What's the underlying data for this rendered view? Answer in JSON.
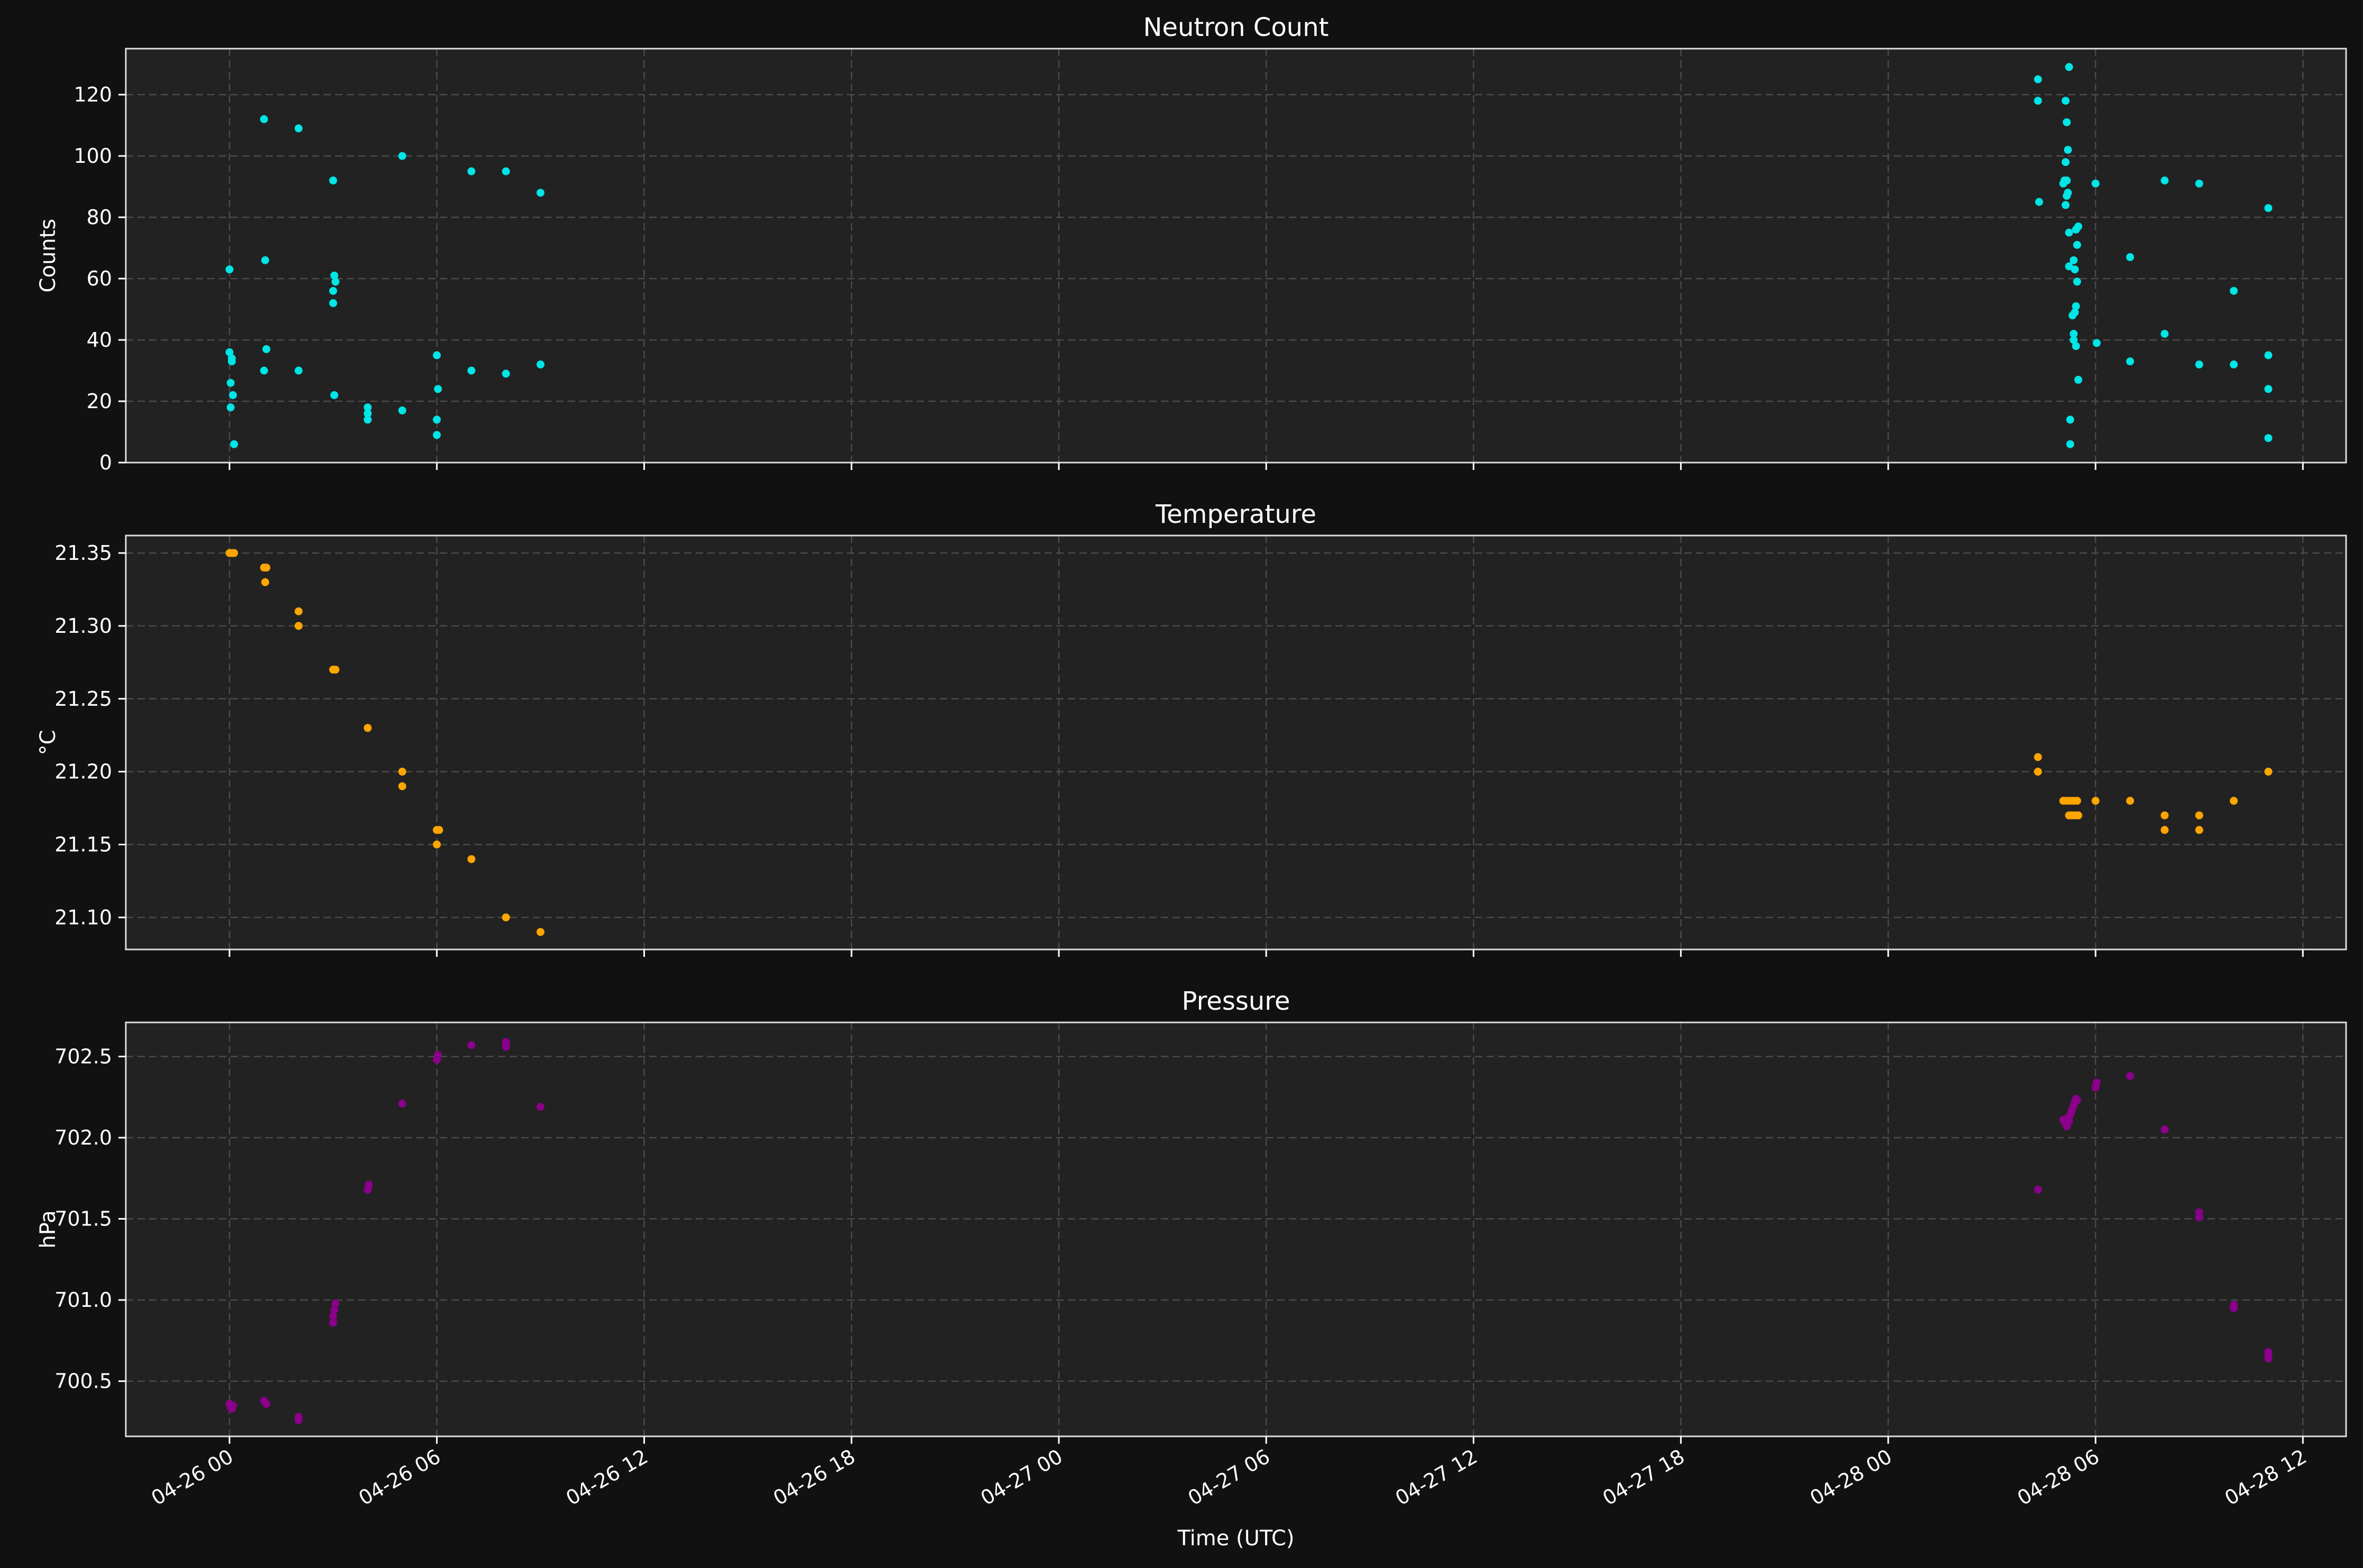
{
  "chart_data": [
    {
      "type": "scatter",
      "title": "Neutron Count",
      "ylabel": "Counts",
      "ylim": [
        0,
        135
      ],
      "yticks": [
        0,
        20,
        40,
        60,
        80,
        100,
        120
      ],
      "ytick_labels": [
        "0",
        "20",
        "40",
        "60",
        "80",
        "100",
        "120"
      ],
      "color": "#00e5e5",
      "points": [
        [
          "04-26 00:00",
          63
        ],
        [
          "04-26 00:00",
          36
        ],
        [
          "04-26 00:04",
          34
        ],
        [
          "04-26 00:04",
          33
        ],
        [
          "04-26 00:02",
          26
        ],
        [
          "04-26 00:06",
          22
        ],
        [
          "04-26 00:02",
          18
        ],
        [
          "04-26 00:08",
          6
        ],
        [
          "04-26 01:00",
          112
        ],
        [
          "04-26 01:02",
          66
        ],
        [
          "04-26 01:04",
          37
        ],
        [
          "04-26 01:00",
          30
        ],
        [
          "04-26 02:00",
          109
        ],
        [
          "04-26 02:00",
          30
        ],
        [
          "04-26 03:00",
          92
        ],
        [
          "04-26 03:02",
          61
        ],
        [
          "04-26 03:04",
          59
        ],
        [
          "04-26 03:00",
          56
        ],
        [
          "04-26 03:00",
          52
        ],
        [
          "04-26 03:02",
          22
        ],
        [
          "04-26 04:00",
          18
        ],
        [
          "04-26 04:00",
          16
        ],
        [
          "04-26 04:00",
          14
        ],
        [
          "04-26 05:00",
          100
        ],
        [
          "04-26 05:00",
          17
        ],
        [
          "04-26 06:00",
          35
        ],
        [
          "04-26 06:02",
          24
        ],
        [
          "04-26 06:00",
          14
        ],
        [
          "04-26 06:00",
          9
        ],
        [
          "04-26 07:00",
          95
        ],
        [
          "04-26 07:00",
          30
        ],
        [
          "04-26 08:00",
          95
        ],
        [
          "04-26 08:00",
          29
        ],
        [
          "04-26 09:00",
          88
        ],
        [
          "04-26 09:00",
          32
        ],
        [
          "04-28 04:20",
          125
        ],
        [
          "04-28 04:20",
          118
        ],
        [
          "04-28 04:22",
          85
        ],
        [
          "04-28 05:14",
          129
        ],
        [
          "04-28 05:08",
          118
        ],
        [
          "04-28 05:10",
          111
        ],
        [
          "04-28 05:12",
          102
        ],
        [
          "04-28 05:08",
          98
        ],
        [
          "04-28 05:06",
          92
        ],
        [
          "04-28 05:10",
          92
        ],
        [
          "04-28 05:04",
          91
        ],
        [
          "04-28 05:12",
          88
        ],
        [
          "04-28 05:10",
          87
        ],
        [
          "04-28 05:08",
          84
        ],
        [
          "04-28 05:30",
          77
        ],
        [
          "04-28 05:26",
          76
        ],
        [
          "04-28 05:14",
          75
        ],
        [
          "04-28 05:28",
          71
        ],
        [
          "04-28 05:22",
          66
        ],
        [
          "04-28 05:14",
          64
        ],
        [
          "04-28 05:24",
          63
        ],
        [
          "04-28 05:28",
          59
        ],
        [
          "04-28 05:26",
          51
        ],
        [
          "04-28 05:24",
          49
        ],
        [
          "04-28 05:20",
          48
        ],
        [
          "04-28 05:22",
          42
        ],
        [
          "04-28 05:22",
          40
        ],
        [
          "04-28 05:26",
          38
        ],
        [
          "04-28 05:30",
          27
        ],
        [
          "04-28 05:16",
          14
        ],
        [
          "04-28 05:16",
          6
        ],
        [
          "04-28 06:00",
          91
        ],
        [
          "04-28 06:02",
          39
        ],
        [
          "04-28 07:00",
          67
        ],
        [
          "04-28 07:00",
          33
        ],
        [
          "04-28 08:00",
          92
        ],
        [
          "04-28 08:00",
          42
        ],
        [
          "04-28 09:00",
          91
        ],
        [
          "04-28 09:00",
          32
        ],
        [
          "04-28 10:00",
          56
        ],
        [
          "04-28 10:00",
          32
        ],
        [
          "04-28 11:00",
          83
        ],
        [
          "04-28 11:00",
          35
        ],
        [
          "04-28 11:00",
          24
        ],
        [
          "04-28 11:00",
          8
        ]
      ]
    },
    {
      "type": "scatter",
      "title": "Temperature",
      "ylabel": "°C",
      "ylim": [
        21.078,
        21.362
      ],
      "yticks": [
        21.1,
        21.15,
        21.2,
        21.25,
        21.3,
        21.35
      ],
      "ytick_labels": [
        "21.10",
        "21.15",
        "21.20",
        "21.25",
        "21.30",
        "21.35"
      ],
      "color": "#ffa500",
      "points": [
        [
          "04-26 00:00",
          21.35
        ],
        [
          "04-26 00:04",
          21.35
        ],
        [
          "04-26 00:08",
          21.35
        ],
        [
          "04-26 01:00",
          21.34
        ],
        [
          "04-26 01:04",
          21.34
        ],
        [
          "04-26 01:02",
          21.33
        ],
        [
          "04-26 02:00",
          21.31
        ],
        [
          "04-26 02:00",
          21.3
        ],
        [
          "04-26 03:00",
          21.27
        ],
        [
          "04-26 03:04",
          21.27
        ],
        [
          "04-26 04:00",
          21.23
        ],
        [
          "04-26 05:00",
          21.2
        ],
        [
          "04-26 05:00",
          21.19
        ],
        [
          "04-26 06:00",
          21.16
        ],
        [
          "04-26 06:04",
          21.16
        ],
        [
          "04-26 06:00",
          21.15
        ],
        [
          "04-26 07:00",
          21.14
        ],
        [
          "04-26 08:00",
          21.1
        ],
        [
          "04-26 09:00",
          21.09
        ],
        [
          "04-28 04:20",
          21.21
        ],
        [
          "04-28 04:20",
          21.2
        ],
        [
          "04-28 05:04",
          21.18
        ],
        [
          "04-28 05:10",
          21.18
        ],
        [
          "04-28 05:16",
          21.18
        ],
        [
          "04-28 05:22",
          21.18
        ],
        [
          "04-28 05:28",
          21.18
        ],
        [
          "04-28 05:14",
          21.17
        ],
        [
          "04-28 05:18",
          21.17
        ],
        [
          "04-28 05:22",
          21.17
        ],
        [
          "04-28 05:26",
          21.17
        ],
        [
          "04-28 05:30",
          21.17
        ],
        [
          "04-28 06:00",
          21.18
        ],
        [
          "04-28 07:00",
          21.18
        ],
        [
          "04-28 08:00",
          21.17
        ],
        [
          "04-28 08:00",
          21.16
        ],
        [
          "04-28 09:00",
          21.17
        ],
        [
          "04-28 09:00",
          21.16
        ],
        [
          "04-28 10:00",
          21.18
        ],
        [
          "04-28 11:00",
          21.2
        ]
      ]
    },
    {
      "type": "scatter",
      "title": "Pressure",
      "ylabel": "hPa",
      "ylim": [
        700.16,
        702.71
      ],
      "yticks": [
        700.5,
        701.0,
        701.5,
        702.0,
        702.5
      ],
      "ytick_labels": [
        "700.5",
        "701.0",
        "701.5",
        "702.0",
        "702.5"
      ],
      "color": "#8b008b",
      "points": [
        [
          "04-26 00:00",
          700.36
        ],
        [
          "04-26 00:02",
          700.34
        ],
        [
          "04-26 00:04",
          700.33
        ],
        [
          "04-26 00:06",
          700.35
        ],
        [
          "04-26 01:00",
          700.38
        ],
        [
          "04-26 01:02",
          700.37
        ],
        [
          "04-26 01:04",
          700.36
        ],
        [
          "04-26 02:00",
          700.28
        ],
        [
          "04-26 02:00",
          700.26
        ],
        [
          "04-26 03:00",
          700.86
        ],
        [
          "04-26 03:00",
          700.9
        ],
        [
          "04-26 03:02",
          700.94
        ],
        [
          "04-26 03:04",
          700.98
        ],
        [
          "04-26 04:00",
          701.68
        ],
        [
          "04-26 04:02",
          701.71
        ],
        [
          "04-26 05:00",
          702.21
        ],
        [
          "04-26 06:00",
          702.48
        ],
        [
          "04-26 06:02",
          702.51
        ],
        [
          "04-26 07:00",
          702.57
        ],
        [
          "04-26 08:00",
          702.56
        ],
        [
          "04-26 08:00",
          702.59
        ],
        [
          "04-26 09:00",
          702.19
        ],
        [
          "04-28 04:20",
          701.68
        ],
        [
          "04-28 05:04",
          702.11
        ],
        [
          "04-28 05:08",
          702.09
        ],
        [
          "04-28 05:10",
          702.07
        ],
        [
          "04-28 05:12",
          702.12
        ],
        [
          "04-28 05:14",
          702.1
        ],
        [
          "04-28 05:16",
          702.14
        ],
        [
          "04-28 05:18",
          702.16
        ],
        [
          "04-28 05:20",
          702.18
        ],
        [
          "04-28 05:22",
          702.2
        ],
        [
          "04-28 05:24",
          702.22
        ],
        [
          "04-28 05:26",
          702.24
        ],
        [
          "04-28 05:28",
          702.23
        ],
        [
          "04-28 06:00",
          702.31
        ],
        [
          "04-28 06:02",
          702.34
        ],
        [
          "04-28 07:00",
          702.38
        ],
        [
          "04-28 08:00",
          702.05
        ],
        [
          "04-28 09:00",
          701.51
        ],
        [
          "04-28 09:00",
          701.54
        ],
        [
          "04-28 10:00",
          700.95
        ],
        [
          "04-28 10:00",
          700.97
        ],
        [
          "04-28 11:00",
          700.64
        ],
        [
          "04-28 11:00",
          700.66
        ],
        [
          "04-28 11:00",
          700.68
        ]
      ]
    }
  ],
  "xaxis": {
    "label": "Time (UTC)",
    "range": [
      "04-25 21:00",
      "04-28 13:15"
    ],
    "ticks": [
      "04-26 00",
      "04-26 06",
      "04-26 12",
      "04-26 18",
      "04-27 00",
      "04-27 06",
      "04-27 12",
      "04-27 18",
      "04-28 00",
      "04-28 06",
      "04-28 12"
    ],
    "grid": true
  },
  "background": "#111111",
  "axes_background": "#222222"
}
